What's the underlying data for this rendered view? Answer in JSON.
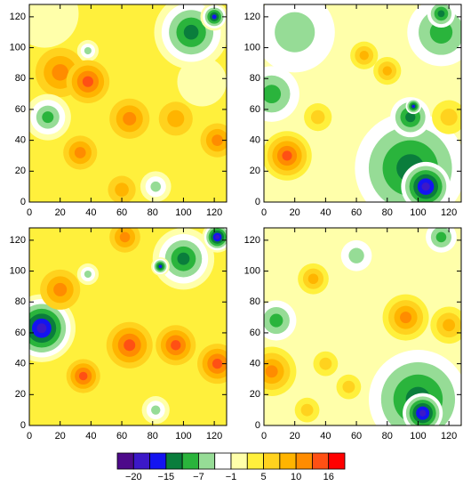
{
  "chart_data": [
    {
      "type": "contour",
      "xlim": [
        0,
        128
      ],
      "ylim": [
        0,
        128
      ],
      "xticks": [
        0,
        20,
        40,
        60,
        80,
        100,
        120
      ],
      "yticks": [
        0,
        20,
        40,
        60,
        80,
        100,
        120
      ],
      "background": 3,
      "blobs": [
        {
          "x": 10,
          "y": 122,
          "r": 22,
          "value": 0
        },
        {
          "x": 112,
          "y": 78,
          "r": 16,
          "value": 0
        },
        {
          "x": 105,
          "y": 110,
          "r": 24,
          "value": -12
        },
        {
          "x": 120,
          "y": 120,
          "r": 9,
          "value": -17
        },
        {
          "x": 38,
          "y": 98,
          "r": 7,
          "value": -5
        },
        {
          "x": 20,
          "y": 84,
          "r": 16,
          "value": 12
        },
        {
          "x": 38,
          "y": 78,
          "r": 14,
          "value": 15
        },
        {
          "x": 12,
          "y": 55,
          "r": 15,
          "value": -9
        },
        {
          "x": 65,
          "y": 54,
          "r": 13,
          "value": 10
        },
        {
          "x": 95,
          "y": 54,
          "r": 11,
          "value": 9
        },
        {
          "x": 122,
          "y": 40,
          "r": 11,
          "value": 10
        },
        {
          "x": 33,
          "y": 32,
          "r": 11,
          "value": 10
        },
        {
          "x": 60,
          "y": 8,
          "r": 9,
          "value": 8
        },
        {
          "x": 82,
          "y": 10,
          "r": 10,
          "value": -5
        }
      ]
    },
    {
      "type": "contour",
      "xlim": [
        0,
        128
      ],
      "ylim": [
        0,
        128
      ],
      "xticks": [
        0,
        20,
        40,
        60,
        80,
        100,
        120
      ],
      "yticks": [
        0,
        20,
        40,
        60,
        80,
        100,
        120
      ],
      "background": 1,
      "blobs": [
        {
          "x": 20,
          "y": 110,
          "r": 26,
          "value": -5
        },
        {
          "x": 115,
          "y": 110,
          "r": 22,
          "value": -9
        },
        {
          "x": 115,
          "y": 122,
          "r": 9,
          "value": -12
        },
        {
          "x": 5,
          "y": 70,
          "r": 18,
          "value": -10
        },
        {
          "x": 95,
          "y": 22,
          "r": 36,
          "value": -13
        },
        {
          "x": 105,
          "y": 10,
          "r": 16,
          "value": -20
        },
        {
          "x": 95,
          "y": 55,
          "r": 13,
          "value": -12
        },
        {
          "x": 97,
          "y": 62,
          "r": 5,
          "value": -17
        },
        {
          "x": 15,
          "y": 30,
          "r": 16,
          "value": 14
        },
        {
          "x": 65,
          "y": 95,
          "r": 9,
          "value": 9
        },
        {
          "x": 80,
          "y": 85,
          "r": 9,
          "value": 8
        },
        {
          "x": 35,
          "y": 55,
          "r": 9,
          "value": 7
        },
        {
          "x": 120,
          "y": 55,
          "r": 11,
          "value": 7
        }
      ]
    },
    {
      "type": "contour",
      "xlim": [
        0,
        128
      ],
      "ylim": [
        0,
        128
      ],
      "xticks": [
        0,
        20,
        40,
        60,
        80,
        100,
        120
      ],
      "yticks": [
        0,
        20,
        40,
        60,
        80,
        100,
        120
      ],
      "background": 3,
      "blobs": [
        {
          "x": 8,
          "y": 63,
          "r": 22,
          "value": -20
        },
        {
          "x": 100,
          "y": 108,
          "r": 20,
          "value": -12
        },
        {
          "x": 85,
          "y": 103,
          "r": 6,
          "value": -16
        },
        {
          "x": 122,
          "y": 122,
          "r": 10,
          "value": -18
        },
        {
          "x": 38,
          "y": 98,
          "r": 7,
          "value": -5
        },
        {
          "x": 65,
          "y": 52,
          "r": 15,
          "value": 15
        },
        {
          "x": 95,
          "y": 52,
          "r": 13,
          "value": 14
        },
        {
          "x": 122,
          "y": 40,
          "r": 13,
          "value": 14
        },
        {
          "x": 35,
          "y": 32,
          "r": 11,
          "value": 13
        },
        {
          "x": 20,
          "y": 88,
          "r": 13,
          "value": 12
        },
        {
          "x": 62,
          "y": 122,
          "r": 10,
          "value": 10
        },
        {
          "x": 82,
          "y": 10,
          "r": 9,
          "value": -7
        }
      ]
    },
    {
      "type": "contour",
      "xlim": [
        0,
        128
      ],
      "ylim": [
        0,
        128
      ],
      "xticks": [
        0,
        20,
        40,
        60,
        80,
        100,
        120
      ],
      "yticks": [
        0,
        20,
        40,
        60,
        80,
        100,
        120
      ],
      "background": 1,
      "blobs": [
        {
          "x": 100,
          "y": 17,
          "r": 32,
          "value": -13
        },
        {
          "x": 103,
          "y": 8,
          "r": 13,
          "value": -19
        },
        {
          "x": 8,
          "y": 68,
          "r": 13,
          "value": -8
        },
        {
          "x": 115,
          "y": 122,
          "r": 10,
          "value": -10
        },
        {
          "x": 60,
          "y": 110,
          "r": 10,
          "value": -5
        },
        {
          "x": 5,
          "y": 35,
          "r": 16,
          "value": 10
        },
        {
          "x": 92,
          "y": 70,
          "r": 15,
          "value": 10
        },
        {
          "x": 120,
          "y": 65,
          "r": 12,
          "value": 9
        },
        {
          "x": 32,
          "y": 95,
          "r": 10,
          "value": 9
        },
        {
          "x": 40,
          "y": 40,
          "r": 8,
          "value": 7
        },
        {
          "x": 55,
          "y": 25,
          "r": 8,
          "value": 7
        },
        {
          "x": 28,
          "y": 10,
          "r": 8,
          "value": 7
        }
      ]
    }
  ],
  "colorbar": {
    "colors": [
      "#4d0a8a",
      "#3c18c8",
      "#1414f0",
      "#0a7d3c",
      "#2ab43c",
      "#96dc96",
      "#ffffff",
      "#ffffaa",
      "#fff03c",
      "#ffd21e",
      "#ffb400",
      "#ff8c00",
      "#ff5014",
      "#ff0000"
    ],
    "ticks": [
      {
        "value": -20,
        "label": "−20"
      },
      {
        "value": -15,
        "label": "−15"
      },
      {
        "value": -7,
        "label": "−7"
      },
      {
        "value": -1,
        "label": "−1"
      },
      5,
      10,
      16
    ]
  }
}
